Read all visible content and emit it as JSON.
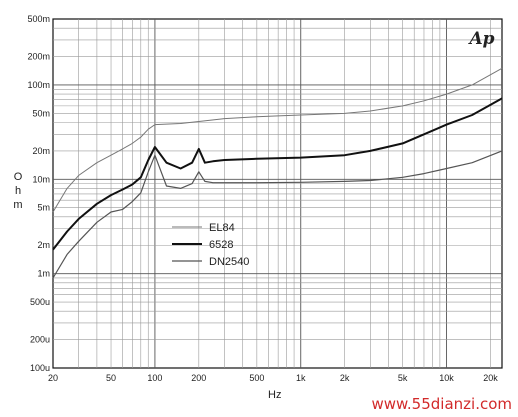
{
  "chart_data": {
    "type": "line",
    "xscale": "log",
    "yscale": "log",
    "xlim": [
      20,
      24000
    ],
    "ylim": [
      0.0001,
      0.5
    ],
    "xlabel": "Hz",
    "ylabel": "O\nh\nm",
    "grid": true,
    "legend_position": "center-left",
    "x_ticks": [
      {
        "value": 20,
        "label": "20"
      },
      {
        "value": 50,
        "label": "50"
      },
      {
        "value": 100,
        "label": "100"
      },
      {
        "value": 200,
        "label": "200"
      },
      {
        "value": 500,
        "label": "500"
      },
      {
        "value": 1000,
        "label": "1k"
      },
      {
        "value": 2000,
        "label": "2k"
      },
      {
        "value": 5000,
        "label": "5k"
      },
      {
        "value": 10000,
        "label": "10k"
      },
      {
        "value": 20000,
        "label": "20k"
      }
    ],
    "y_ticks": [
      {
        "value": 0.5,
        "label": "500m"
      },
      {
        "value": 0.2,
        "label": "200m"
      },
      {
        "value": 0.1,
        "label": "100m"
      },
      {
        "value": 0.05,
        "label": "50m"
      },
      {
        "value": 0.02,
        "label": "20m"
      },
      {
        "value": 0.01,
        "label": "10m"
      },
      {
        "value": 0.005,
        "label": "5m"
      },
      {
        "value": 0.002,
        "label": "2m"
      },
      {
        "value": 0.001,
        "label": "1m"
      },
      {
        "value": 0.0005,
        "label": "500u"
      },
      {
        "value": 0.0002,
        "label": "200u"
      },
      {
        "value": 0.0001,
        "label": "100u"
      }
    ],
    "series": [
      {
        "name": "EL84",
        "color": "#777777",
        "width": 1.0,
        "x": [
          20,
          25,
          30,
          40,
          50,
          60,
          70,
          80,
          90,
          100,
          150,
          200,
          300,
          500,
          700,
          1000,
          2000,
          3000,
          5000,
          7000,
          10000,
          15000,
          24000
        ],
        "y": [
          0.0045,
          0.008,
          0.011,
          0.015,
          0.018,
          0.021,
          0.024,
          0.028,
          0.034,
          0.038,
          0.039,
          0.041,
          0.044,
          0.046,
          0.047,
          0.048,
          0.05,
          0.053,
          0.06,
          0.068,
          0.08,
          0.1,
          0.15
        ]
      },
      {
        "name": "6528",
        "color": "#111111",
        "width": 2.0,
        "x": [
          20,
          25,
          30,
          40,
          50,
          60,
          70,
          80,
          90,
          100,
          120,
          150,
          180,
          200,
          220,
          250,
          300,
          500,
          1000,
          2000,
          3000,
          5000,
          7000,
          10000,
          15000,
          24000
        ],
        "y": [
          0.0018,
          0.0028,
          0.0038,
          0.0055,
          0.0068,
          0.0078,
          0.0088,
          0.0105,
          0.016,
          0.022,
          0.015,
          0.013,
          0.015,
          0.021,
          0.015,
          0.0155,
          0.016,
          0.0165,
          0.017,
          0.018,
          0.02,
          0.024,
          0.03,
          0.038,
          0.048,
          0.072
        ]
      },
      {
        "name": "DN2540",
        "color": "#555555",
        "width": 1.2,
        "x": [
          20,
          25,
          30,
          40,
          50,
          60,
          70,
          80,
          90,
          100,
          120,
          150,
          180,
          200,
          220,
          250,
          300,
          500,
          1000,
          2000,
          3000,
          5000,
          7000,
          10000,
          15000,
          24000
        ],
        "y": [
          0.0009,
          0.0016,
          0.0022,
          0.0035,
          0.0045,
          0.0048,
          0.0058,
          0.0072,
          0.012,
          0.018,
          0.0085,
          0.008,
          0.009,
          0.012,
          0.0095,
          0.0092,
          0.0092,
          0.0092,
          0.0093,
          0.0095,
          0.0097,
          0.0105,
          0.0115,
          0.013,
          0.015,
          0.02
        ]
      }
    ]
  },
  "logo_text": "Ap",
  "watermark_text": "www.55dianzi.com"
}
